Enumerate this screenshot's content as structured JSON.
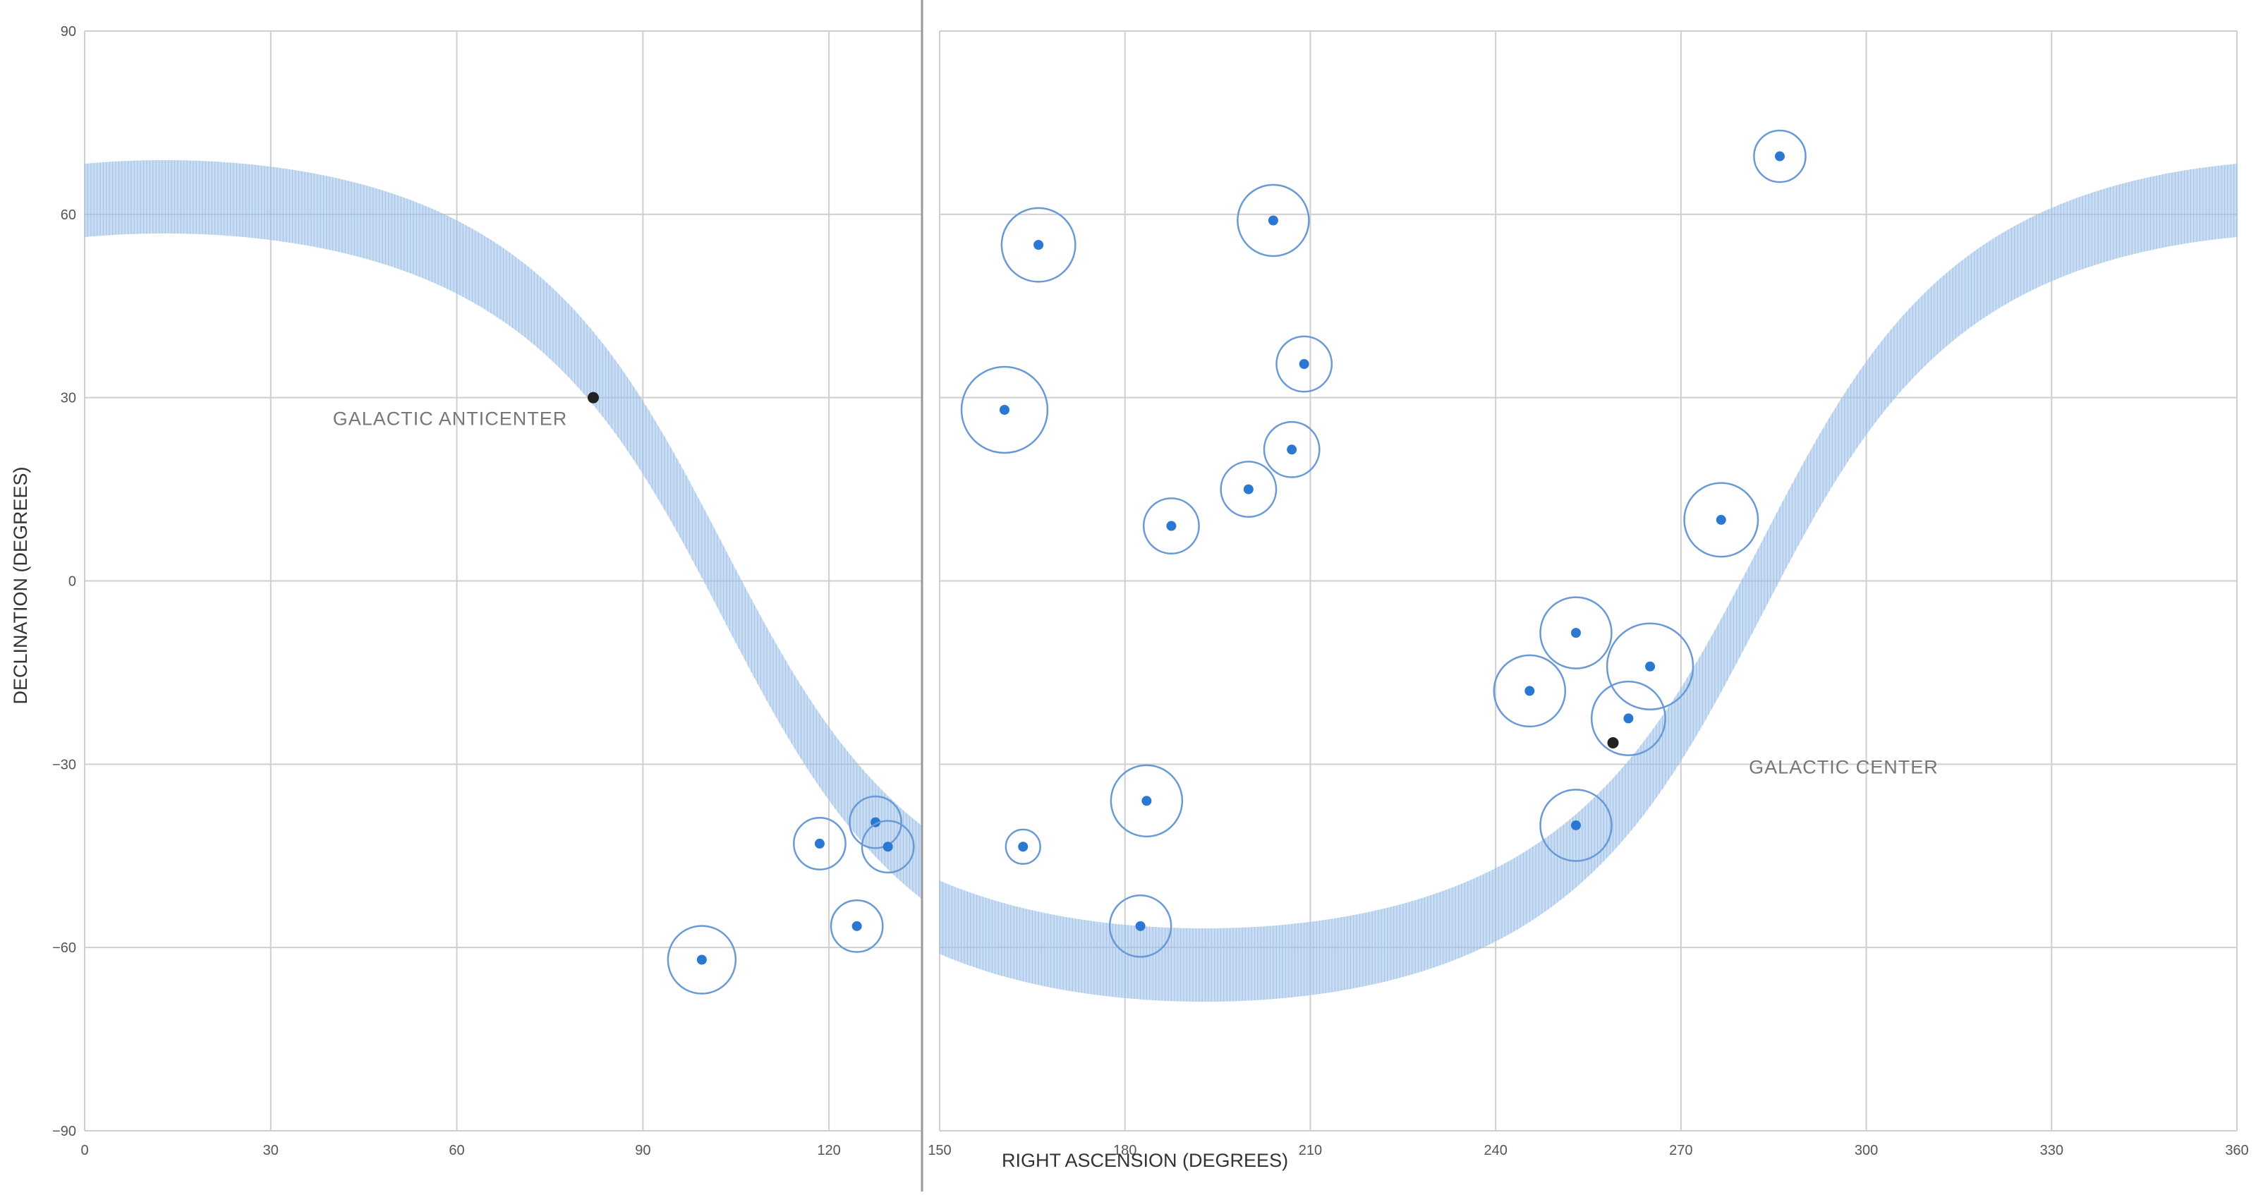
{
  "chart_data": {
    "type": "scatter",
    "xlabel": "RIGHT ASCENSION (DEGREES)",
    "ylabel": "DECLINATION (DEGREES)",
    "panels": [
      {
        "x_range": [
          0,
          135
        ],
        "x_ticks": [
          0,
          30,
          60,
          90,
          120
        ],
        "x_tick_labels": [
          "0",
          "30",
          "60",
          "90",
          "120"
        ]
      },
      {
        "x_range": [
          150,
          360
        ],
        "x_ticks": [
          150,
          180,
          210,
          240,
          270,
          300,
          330,
          360
        ],
        "x_tick_labels": [
          "150",
          "180",
          "210",
          "240",
          "270",
          "300",
          "330",
          "360"
        ]
      }
    ],
    "y_range": [
      -90,
      90
    ],
    "y_ticks": [
      90,
      60,
      30,
      0,
      -30,
      -60,
      -90
    ],
    "y_tick_labels": [
      "90",
      "60",
      "30",
      "0",
      "−30",
      "−60",
      "−90"
    ],
    "grid": true,
    "colors": {
      "source": "#2a78d2",
      "circle": "#6a9ad6",
      "band": "#9cc0e8",
      "grid": "#cfcfcf",
      "marker": "#222222"
    },
    "sources": [
      {
        "ra": 99.5,
        "dec": -62,
        "r": 5.5
      },
      {
        "ra": 118.5,
        "dec": -43,
        "r": 4.2
      },
      {
        "ra": 124.5,
        "dec": -56.5,
        "r": 4.2
      },
      {
        "ra": 127.5,
        "dec": -39.5,
        "r": 4.2
      },
      {
        "ra": 129.5,
        "dec": -43.5,
        "r": 4.2
      },
      {
        "ra": 160.5,
        "dec": 28,
        "r": 7
      },
      {
        "ra": 163.5,
        "dec": -43.5,
        "r": 2.8
      },
      {
        "ra": 166,
        "dec": 55,
        "r": 6
      },
      {
        "ra": 182.5,
        "dec": -56.5,
        "r": 5
      },
      {
        "ra": 183.5,
        "dec": -36,
        "r": 5.8
      },
      {
        "ra": 187.5,
        "dec": 9,
        "r": 4.5
      },
      {
        "ra": 200,
        "dec": 15,
        "r": 4.5
      },
      {
        "ra": 204,
        "dec": 59,
        "r": 5.8
      },
      {
        "ra": 207,
        "dec": 21.5,
        "r": 4.5
      },
      {
        "ra": 209,
        "dec": 35.5,
        "r": 4.5
      },
      {
        "ra": 245.5,
        "dec": -18,
        "r": 5.8
      },
      {
        "ra": 253,
        "dec": -40,
        "r": 5.8
      },
      {
        "ra": 253,
        "dec": -8.5,
        "r": 5.8
      },
      {
        "ra": 261.5,
        "dec": -22.5,
        "r": 6
      },
      {
        "ra": 265,
        "dec": -14,
        "r": 7
      },
      {
        "ra": 276.5,
        "dec": 10,
        "r": 6
      },
      {
        "ra": 286,
        "dec": 69.5,
        "r": 4.2
      }
    ],
    "markers": [
      {
        "label": "GALACTIC ANTICENTER",
        "ra": 82,
        "dec": 30,
        "label_ra": 40,
        "label_dec": 25.5
      },
      {
        "label": "GALACTIC CENTER",
        "ra": 259,
        "dec": -26.5,
        "label_ra": 281,
        "label_dec": -31.5
      }
    ],
    "galactic_plane_band_half_width_deg": 6
  }
}
